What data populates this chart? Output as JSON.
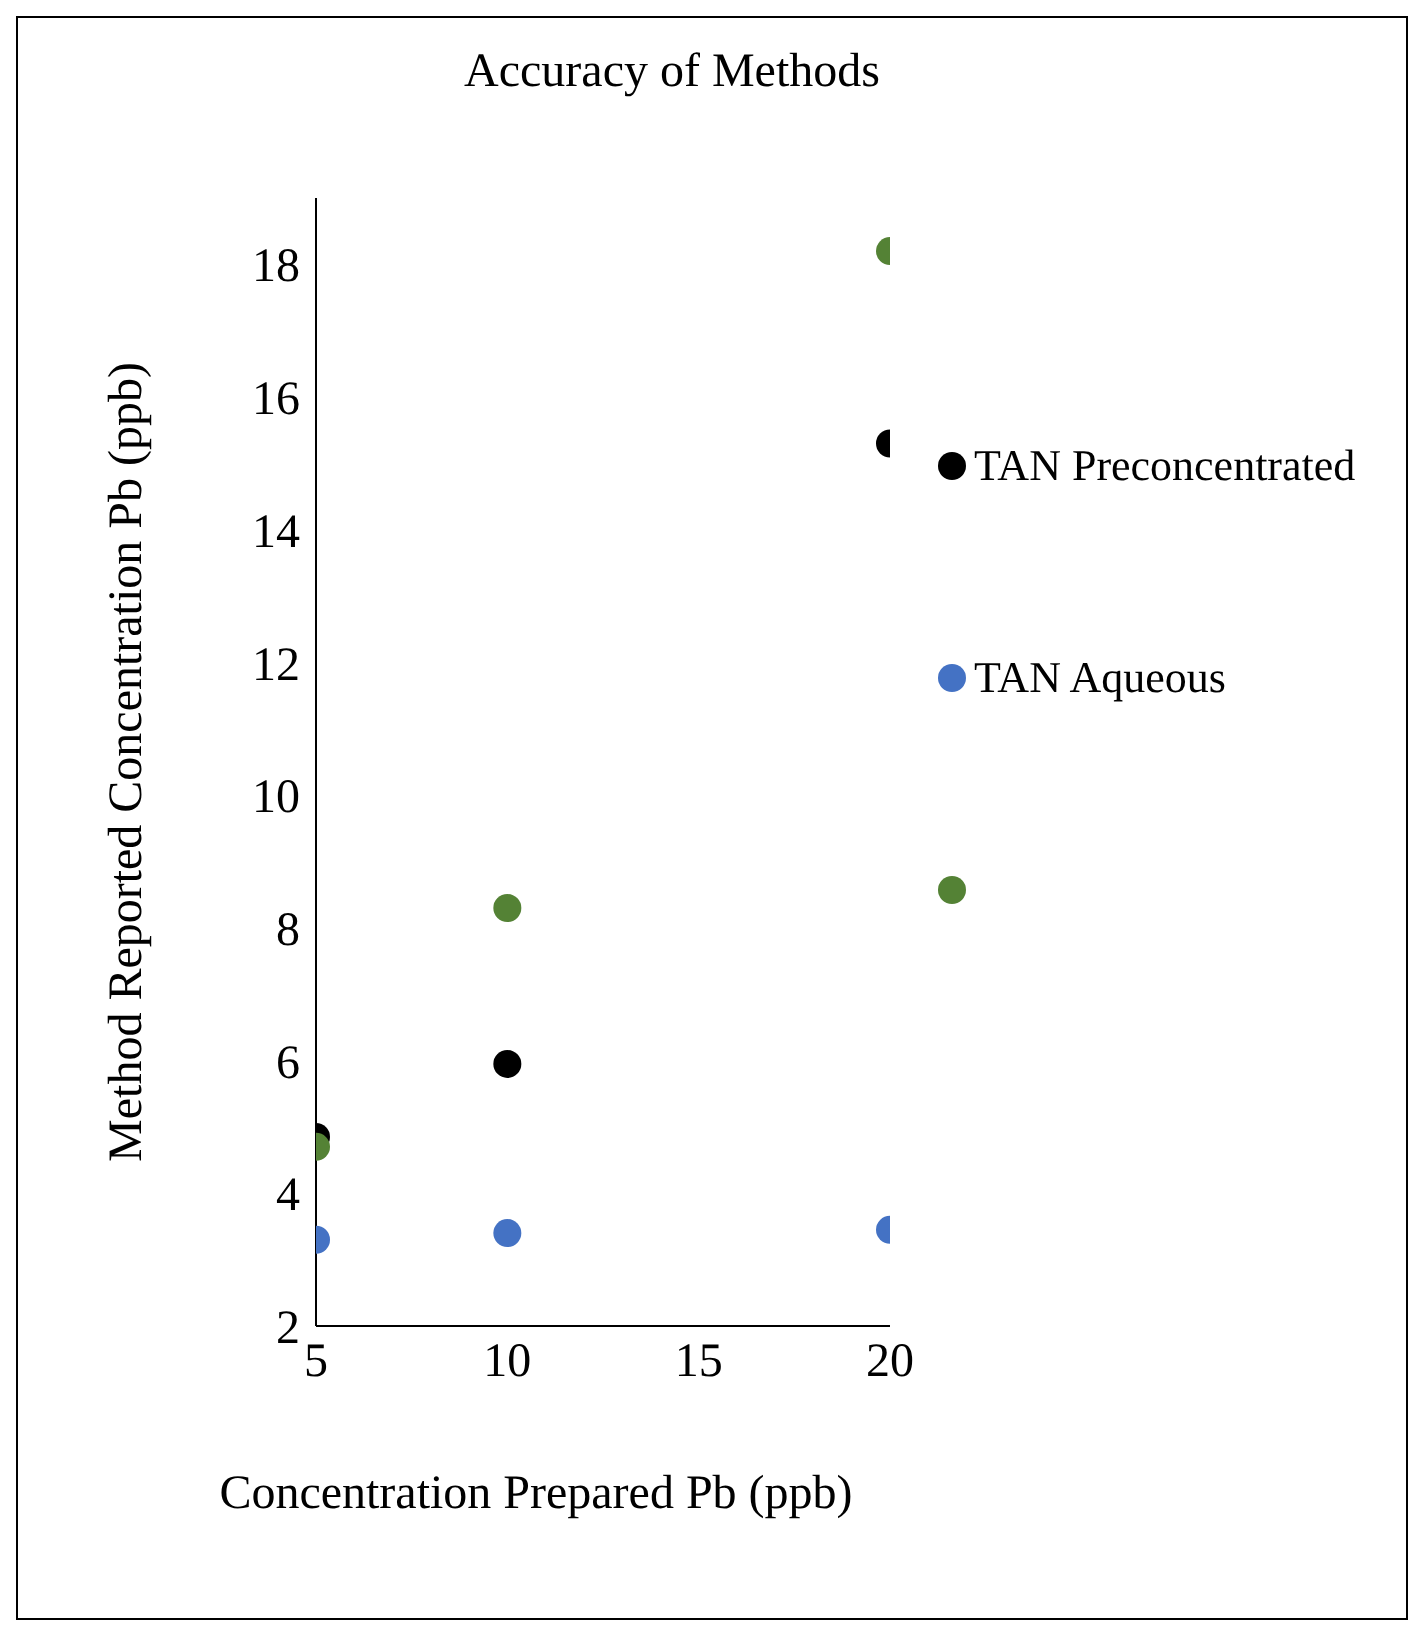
{
  "chart_data": {
    "type": "scatter",
    "title": "Accuracy of Methods",
    "xlabel": "Concentration Prepared Pb (ppb)",
    "ylabel": "Method Reported Concentration Pb (ppb)",
    "x": [
      5,
      10,
      20
    ],
    "series": [
      {
        "name": "TAN Preconcentrated",
        "color": "#000000",
        "values": [
          4.85,
          5.95,
          15.3
        ]
      },
      {
        "name": "TAN Aqueous",
        "color": "#4472c4",
        "values": [
          3.3,
          3.4,
          3.45
        ]
      },
      {
        "color": "#548235",
        "values": [
          4.7,
          8.3,
          18.2
        ]
      }
    ],
    "xlim": [
      5,
      20
    ],
    "xticks": [
      5,
      10,
      15,
      20
    ],
    "ylim": [
      2,
      19
    ],
    "yticks": [
      2,
      4,
      6,
      8,
      10,
      12,
      14,
      16,
      18
    ],
    "grid": false,
    "legend": "right",
    "marker": "circle"
  }
}
